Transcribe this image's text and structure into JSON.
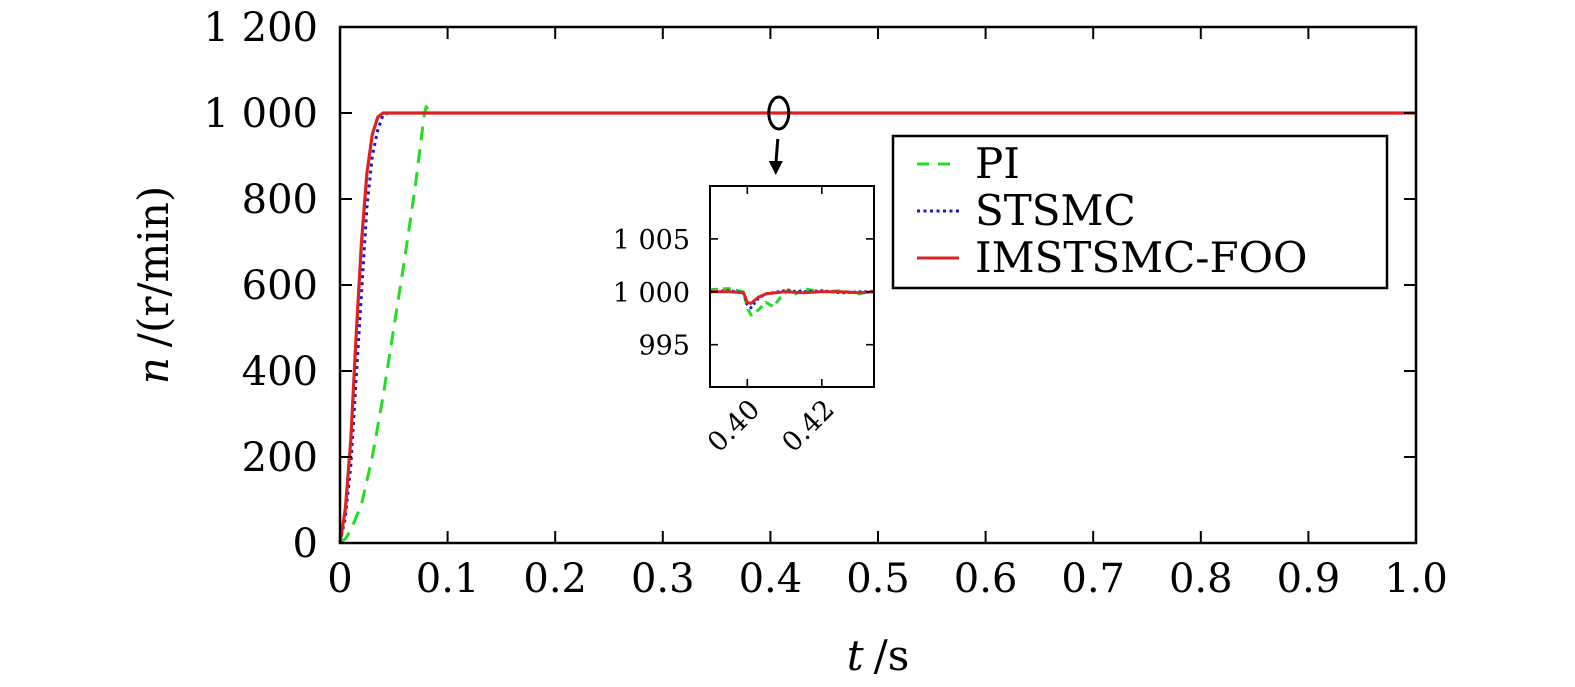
{
  "chart_data": {
    "type": "line",
    "xlabel_var": "t",
    "xlabel_unit": "/s",
    "ylabel_var": "n",
    "ylabel_unit": "/(r/min)",
    "xlim": [
      0,
      1.0
    ],
    "ylim": [
      0,
      1200
    ],
    "x_ticks": [
      0,
      0.1,
      0.2,
      0.3,
      0.4,
      0.5,
      0.6,
      0.7,
      0.8,
      0.9,
      1.0
    ],
    "x_tick_labels": [
      "0",
      "0.1",
      "0.2",
      "0.3",
      "0.4",
      "0.5",
      "0.6",
      "0.7",
      "0.8",
      "0.9",
      "1.0"
    ],
    "y_ticks": [
      0,
      200,
      400,
      600,
      800,
      1000,
      1200
    ],
    "y_tick_labels": [
      "0",
      "200",
      "400",
      "600",
      "800",
      "1 000",
      "1 200"
    ],
    "grid": false,
    "legend_position": "upper-right",
    "series": [
      {
        "name": "PI",
        "color": "#22dd22",
        "dash": "dashed",
        "x": [
          0.0,
          0.005,
          0.01,
          0.02,
          0.03,
          0.04,
          0.05,
          0.06,
          0.07,
          0.075,
          0.078,
          0.08,
          0.083,
          0.09,
          0.1,
          1.0
        ],
        "y": [
          0,
          10,
          30,
          90,
          200,
          340,
          500,
          660,
          830,
          930,
          990,
          1015,
          1005,
          1000,
          1000,
          1000
        ]
      },
      {
        "name": "STSMC",
        "color": "#1a1acc",
        "dash": "dotted",
        "x": [
          0.0,
          0.005,
          0.01,
          0.015,
          0.02,
          0.025,
          0.03,
          0.035,
          0.04,
          0.045,
          1.0
        ],
        "y": [
          0,
          60,
          180,
          380,
          580,
          780,
          900,
          960,
          995,
          1000,
          1000
        ]
      },
      {
        "name": "IMSTSMC-FOO",
        "color": "#dd2222",
        "dash": "solid",
        "x": [
          0.0,
          0.005,
          0.01,
          0.015,
          0.02,
          0.025,
          0.03,
          0.035,
          0.04,
          1.0
        ],
        "y": [
          0,
          80,
          240,
          480,
          700,
          860,
          950,
          990,
          1000,
          1000
        ]
      }
    ],
    "inset": {
      "xlim": [
        0.39,
        0.434
      ],
      "ylim": [
        991,
        1010
      ],
      "x_ticks": [
        0.4,
        0.42
      ],
      "x_tick_labels": [
        "0.40",
        "0.42"
      ],
      "y_ticks": [
        995,
        1000,
        1005
      ],
      "y_tick_labels": [
        "995",
        "1 000",
        "1 005"
      ],
      "series": [
        {
          "name": "PI",
          "x": [
            0.39,
            0.395,
            0.399,
            0.4,
            0.401,
            0.403,
            0.405,
            0.407,
            0.409,
            0.411,
            0.413,
            0.415,
            0.42,
            0.425,
            0.43,
            0.434
          ],
          "y": [
            1000.2,
            1000.3,
            1000.0,
            998.5,
            997.8,
            998.3,
            999.0,
            998.6,
            999.5,
            1000.2,
            999.8,
            1000.3,
            1000.0,
            1000.1,
            999.8,
            1000.1
          ]
        },
        {
          "name": "STSMC",
          "x": [
            0.39,
            0.395,
            0.399,
            0.4,
            0.401,
            0.403,
            0.405,
            0.41,
            0.415,
            0.42,
            0.425,
            0.43,
            0.434
          ],
          "y": [
            1000.0,
            1000.1,
            999.9,
            998.8,
            998.5,
            999.4,
            999.8,
            1000.1,
            1000.0,
            1000.1,
            999.9,
            1000.0,
            1000.0
          ]
        },
        {
          "name": "IMSTSMC-FOO",
          "x": [
            0.39,
            0.395,
            0.399,
            0.4,
            0.401,
            0.403,
            0.405,
            0.41,
            0.415,
            0.42,
            0.425,
            0.43,
            0.434
          ],
          "y": [
            1000.0,
            1000.0,
            999.9,
            999.0,
            998.9,
            999.5,
            999.8,
            1000.0,
            999.9,
            1000.0,
            1000.0,
            999.9,
            1000.0
          ]
        }
      ]
    },
    "annotation": {
      "marker": "ellipse",
      "x": 0.405,
      "y": 1000
    }
  }
}
